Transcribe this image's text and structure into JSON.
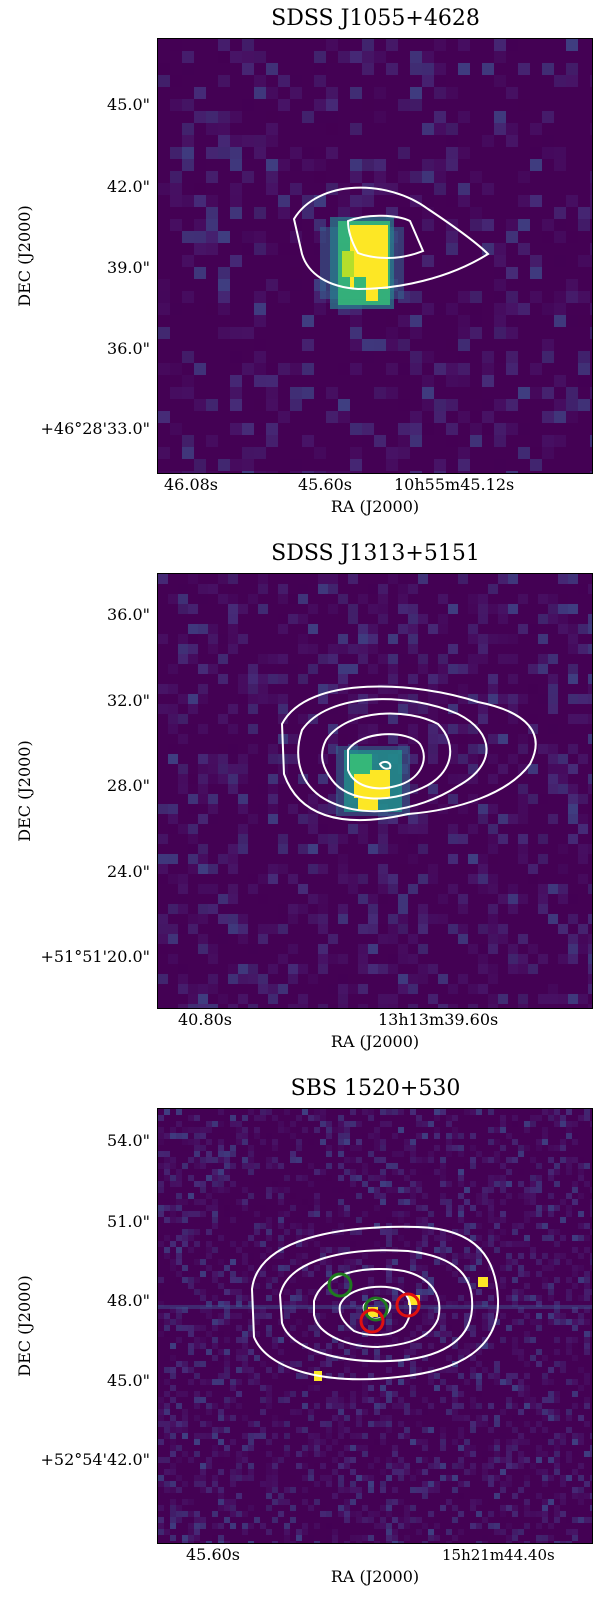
{
  "panels": [
    {
      "title": "SDSS J1055+4628",
      "xlabel": "RA (J2000)",
      "ylabel": "DEC (J2000)",
      "yticks": [
        "45.0\"",
        "42.0\"",
        "39.0\"",
        "36.0\"",
        "+46°28'33.0\""
      ],
      "xticks": [
        "46.08s",
        "45.60s",
        "10h55m45.12s"
      ]
    },
    {
      "title": "SDSS J1313+5151",
      "xlabel": "RA (J2000)",
      "ylabel": "DEC (J2000)",
      "yticks": [
        "36.0\"",
        "32.0\"",
        "28.0\"",
        "24.0\"",
        "+51°51'20.0\""
      ],
      "xticks": [
        "40.80s",
        "13h13m39.60s"
      ]
    },
    {
      "title": "SBS 1520+530",
      "xlabel": "RA (J2000)",
      "ylabel": "DEC (J2000)",
      "yticks": [
        "54.0\"",
        "51.0\"",
        "48.0\"",
        "45.0\"",
        "+52°54'42.0\""
      ],
      "xticks": [
        "45.60s",
        "15h21m44.40s"
      ]
    }
  ],
  "colors": {
    "background": "#440154",
    "peak": "#fde725",
    "contour": "#ffffff",
    "marker_green": "#1f7a1f",
    "marker_red": "#e01010"
  }
}
